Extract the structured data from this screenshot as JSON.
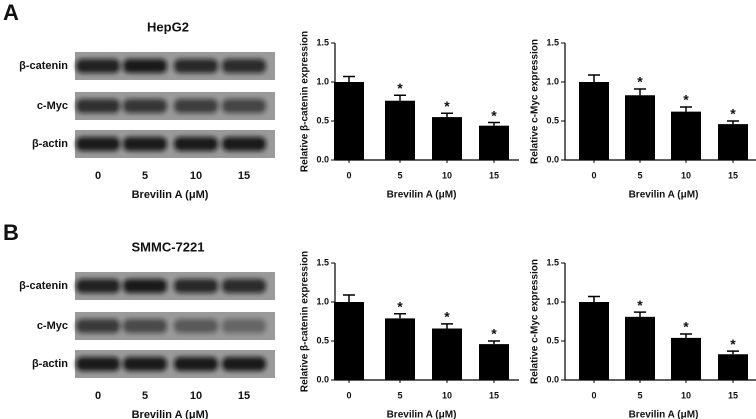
{
  "panels": [
    {
      "label": "A",
      "blot": {
        "title": "HepG2",
        "rows": [
          "β-catenin",
          "c-Myc",
          "β-actin"
        ],
        "lanes": [
          "0",
          "5",
          "10",
          "15"
        ],
        "xlabel": "Brevilin A (μM)"
      }
    },
    {
      "label": "B",
      "blot": {
        "title": "SMMC-7221",
        "rows": [
          "β-catenin",
          "c-Myc",
          "β-actin"
        ],
        "lanes": [
          "0",
          "5",
          "10",
          "15"
        ],
        "xlabel": "Brevilin A (μM)"
      }
    }
  ],
  "chart_data": [
    {
      "type": "bar",
      "ylabel": "Relative β-catenin expression",
      "xlabel": "Brevilin A (μM)",
      "categories": [
        "0",
        "5",
        "10",
        "15"
      ],
      "values": [
        1.0,
        0.76,
        0.55,
        0.44
      ],
      "errors": [
        0.07,
        0.07,
        0.05,
        0.04
      ],
      "annotations": [
        null,
        "*",
        "*",
        "*"
      ],
      "color": "#000000",
      "ylim": [
        0,
        1.5
      ],
      "yticks": [
        {
          "value": 0,
          "label": "0.0"
        },
        {
          "value": 0.5,
          "label": "0.5"
        },
        {
          "value": 1,
          "label": "1.0"
        },
        {
          "value": 1.5,
          "label": "1.5"
        }
      ]
    },
    {
      "type": "bar",
      "ylabel": "Relative c-Myc expression",
      "xlabel": "Brevilin A (μM)",
      "categories": [
        "0",
        "5",
        "10",
        "15"
      ],
      "values": [
        1.0,
        0.83,
        0.62,
        0.46
      ],
      "errors": [
        0.09,
        0.08,
        0.06,
        0.04
      ],
      "annotations": [
        null,
        "*",
        "*",
        "*"
      ],
      "color": "#000000",
      "ylim": [
        0,
        1.5
      ],
      "yticks": [
        {
          "value": 0,
          "label": "0.0"
        },
        {
          "value": 0.5,
          "label": "0.5"
        },
        {
          "value": 1,
          "label": "1.0"
        },
        {
          "value": 1.5,
          "label": "1.5"
        }
      ]
    },
    {
      "type": "bar",
      "ylabel": "Relative β-catenin expression",
      "xlabel": "Brevilin A (μM)",
      "categories": [
        "0",
        "5",
        "10",
        "15"
      ],
      "values": [
        1.0,
        0.79,
        0.66,
        0.46
      ],
      "errors": [
        0.09,
        0.06,
        0.06,
        0.04
      ],
      "annotations": [
        null,
        "*",
        "*",
        "*"
      ],
      "color": "#000000",
      "ylim": [
        0,
        1.5
      ],
      "yticks": [
        {
          "value": 0,
          "label": "0.0"
        },
        {
          "value": 0.5,
          "label": "0.5"
        },
        {
          "value": 1,
          "label": "1.0"
        },
        {
          "value": 1.5,
          "label": "1.5"
        }
      ]
    },
    {
      "type": "bar",
      "ylabel": "Relative c-Myc expression",
      "xlabel": "Brevilin A (μM)",
      "categories": [
        "0",
        "5",
        "10",
        "15"
      ],
      "values": [
        1.0,
        0.81,
        0.54,
        0.33
      ],
      "errors": [
        0.07,
        0.06,
        0.05,
        0.04
      ],
      "annotations": [
        null,
        "*",
        "*",
        "*"
      ],
      "color": "#000000",
      "ylim": [
        0,
        1.5
      ],
      "yticks": [
        {
          "value": 0,
          "label": "0.0"
        },
        {
          "value": 0.5,
          "label": "0.5"
        },
        {
          "value": 1,
          "label": "1.0"
        },
        {
          "value": 1.5,
          "label": "1.5"
        }
      ]
    }
  ]
}
